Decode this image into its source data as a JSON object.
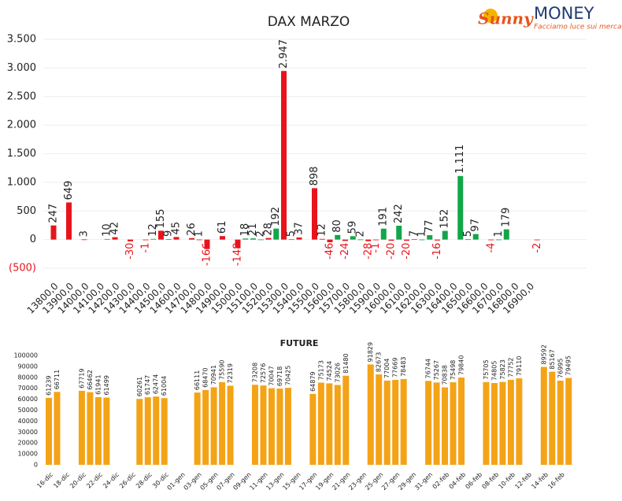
{
  "logo": {
    "brand": "Sunny",
    "name": "MONEY",
    "tagline": "Facciamo luce sui mercati"
  },
  "chart_data": [
    {
      "type": "bar",
      "title": "DAX MARZO",
      "categories": [
        "13800,0",
        null,
        "13900,0",
        null,
        "14000,0",
        null,
        "14100,0",
        null,
        "14200,0",
        null,
        "14300,0",
        null,
        "14400,0",
        null,
        "14500,0",
        null,
        "14600,0",
        null,
        "14700,0",
        null,
        "14800,0",
        null,
        "14900,0",
        null,
        "15000,0",
        null,
        "15100,0",
        null,
        "15200,0",
        null,
        "15300,0",
        null,
        "15400,0",
        null,
        "15500,0",
        null,
        "15600,0",
        null,
        "15700,0",
        null,
        "15800,0",
        null,
        "15900,0",
        null,
        "16000,0",
        null,
        "16100,0",
        null,
        "16200,0",
        null,
        "16300,0",
        null,
        "16400,0",
        null,
        "16500,0",
        null,
        "16600,0",
        null,
        "16700,0",
        null,
        "16800,0",
        null,
        "16900,0",
        null
      ],
      "values": [
        247,
        null,
        649,
        null,
        3,
        null,
        null,
        10,
        42,
        null,
        -30,
        null,
        -1,
        12,
        155,
        9,
        45,
        null,
        26,
        1,
        -166,
        null,
        61,
        null,
        -148,
        18,
        21,
        2,
        28,
        192,
        2947,
        5,
        37,
        null,
        898,
        12,
        -46,
        80,
        -24,
        59,
        2,
        -28,
        -1,
        191,
        -20,
        242,
        -20,
        7,
        1,
        77,
        -16,
        152,
        null,
        1111,
        5,
        97,
        null,
        -4,
        1,
        179,
        null,
        null,
        null,
        -2
      ],
      "value_labels": [
        "247",
        null,
        "649",
        null,
        "3",
        null,
        null,
        "10",
        "42",
        null,
        "-30",
        null,
        "-1",
        "12",
        "155",
        "9",
        "45",
        null,
        "26",
        "1",
        "-166",
        null,
        "61",
        null,
        "-148",
        "18",
        "21",
        "2",
        "28",
        "192",
        "2.947",
        "5",
        "37",
        null,
        "898",
        "12",
        "-46",
        "80",
        "-24",
        "59",
        "2",
        "-28",
        "-1",
        "191",
        "-20",
        "242",
        "-20",
        "7",
        "1",
        "77",
        "-16",
        "152",
        null,
        "1.111",
        "5",
        "97",
        null,
        "-4",
        "1",
        "179",
        null,
        null,
        null,
        "-2"
      ],
      "colors": [
        "#e8141c",
        null,
        "#e8141c",
        null,
        "#e8141c",
        null,
        null,
        "#13a54a",
        "#e8141c",
        null,
        "#e8141c",
        null,
        "#e8141c",
        "#13a54a",
        "#e8141c",
        "#13a54a",
        "#e8141c",
        null,
        "#e8141c",
        "#e8141c",
        "#e8141c",
        null,
        "#e8141c",
        null,
        "#e8141c",
        "#13a54a",
        "#13a54a",
        "#13a54a",
        "#e8141c",
        "#13a54a",
        "#e8141c",
        "#13a54a",
        "#e8141c",
        null,
        "#e8141c",
        "#e8141c",
        "#e8141c",
        "#13a54a",
        "#e8141c",
        "#13a54a",
        "#13a54a",
        "#e8141c",
        "#e8141c",
        "#13a54a",
        "#e8141c",
        "#13a54a",
        "#e8141c",
        "#13a54a",
        "#13a54a",
        "#13a54a",
        "#e8141c",
        "#13a54a",
        null,
        "#13a54a",
        "#13a54a",
        "#13a54a",
        null,
        "#e8141c",
        "#13a54a",
        "#13a54a",
        null,
        null,
        null,
        "#e8141c"
      ],
      "negative_label_color": "#e8141c",
      "ylim": [
        -500,
        3500
      ],
      "yticks": [
        {
          "value": -500,
          "label": "(500)"
        },
        0,
        500,
        {
          "value": 1000,
          "label": "1.000"
        },
        {
          "value": 1500,
          "label": "1.500"
        },
        {
          "value": 2000,
          "label": "2.000"
        },
        {
          "value": 2500,
          "label": "2.500"
        },
        {
          "value": 3000,
          "label": "3.000"
        },
        {
          "value": 3500,
          "label": "3.500"
        }
      ],
      "grid": true
    },
    {
      "type": "bar",
      "title": "FUTURE",
      "color": "#f4a316",
      "categories": [
        "16-dic",
        null,
        "18-dic",
        null,
        "20-dic",
        null,
        "22-dic",
        null,
        "24-dic",
        null,
        "26-dic",
        null,
        "28-dic",
        null,
        "30-dic",
        null,
        "01-gen",
        null,
        "03-gen",
        null,
        "05-gen",
        null,
        "07-gen",
        null,
        "09-gen",
        null,
        "11-gen",
        null,
        "13-gen",
        null,
        "15-gen",
        null,
        "17-gen",
        null,
        "19-gen",
        null,
        "21-gen",
        null,
        "23-gen",
        null,
        "25-gen",
        null,
        "27-gen",
        null,
        "29-gen",
        null,
        "31-gen",
        null,
        "02-feb",
        null,
        "04-feb",
        null,
        "06-feb",
        null,
        "08-feb",
        null,
        "10-feb",
        null,
        "12-feb",
        null,
        "14-feb",
        null,
        "16-feb",
        null
      ],
      "values": [
        61239,
        66711,
        null,
        null,
        67719,
        66462,
        61941,
        61499,
        null,
        null,
        null,
        60261,
        61747,
        62474,
        61004,
        null,
        null,
        null,
        66111,
        68470,
        70941,
        75590,
        72319,
        null,
        null,
        73208,
        72576,
        70047,
        69718,
        70425,
        null,
        null,
        64879,
        75173,
        74524,
        73026,
        81480,
        null,
        null,
        91829,
        82673,
        77004,
        77669,
        78483,
        null,
        null,
        76744,
        75267,
        70838,
        75498,
        79840,
        null,
        null,
        75705,
        74805,
        75823,
        77752,
        79110,
        null,
        null,
        89592,
        85167,
        76995,
        79495
      ],
      "ylim": [
        0,
        100000
      ],
      "yticks": [
        0,
        10000,
        20000,
        30000,
        40000,
        50000,
        60000,
        70000,
        80000,
        90000,
        100000
      ],
      "grid": false
    }
  ]
}
